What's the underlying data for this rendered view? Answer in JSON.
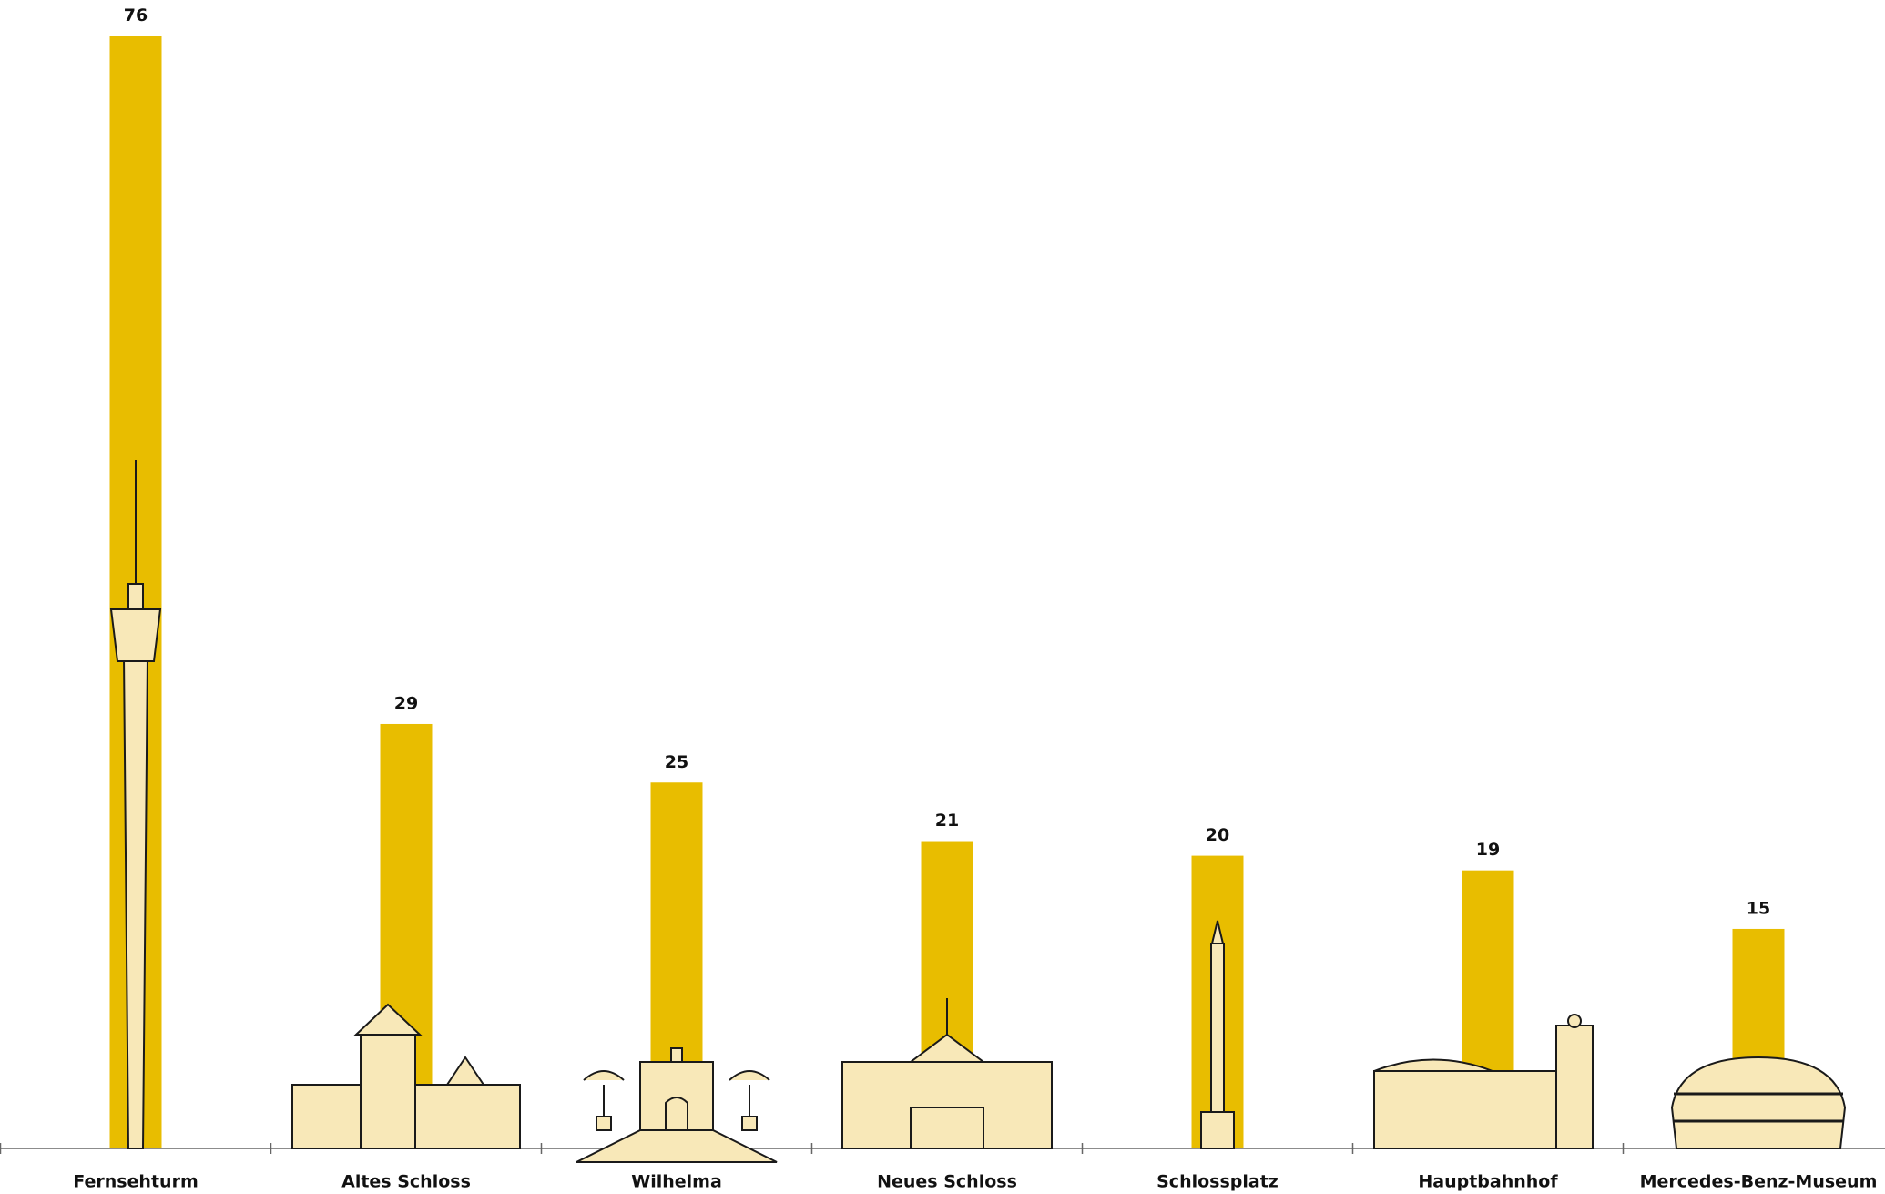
{
  "chart_data": {
    "type": "bar",
    "categories": [
      "Fernsehturm",
      "Altes Schloss",
      "Wilhelma",
      "Neues Schloss",
      "Schlossplatz",
      "Hauptbahnhof",
      "Mercedes-Benz-Museum"
    ],
    "values": [
      76,
      29,
      25,
      21,
      20,
      19,
      15
    ],
    "color": "#e8bd00"
  }
}
